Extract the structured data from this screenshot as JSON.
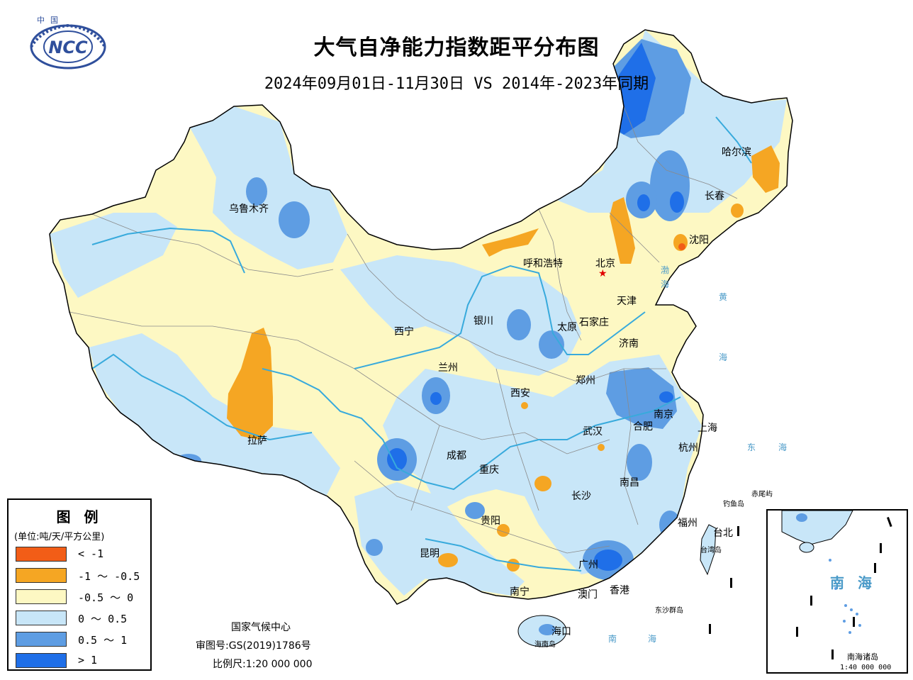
{
  "title": "大气自净能力指数距平分布图",
  "subtitle": "2024年09月01日-11月30日 VS 2014年-2023年同期",
  "logo": {
    "top_text": "中国",
    "text": "NCC"
  },
  "colors": {
    "lt_neg1": "#f25d17",
    "neg1_neg05": "#f5a623",
    "neg05_0": "#fdf8c3",
    "0_05": "#c8e6f8",
    "05_1": "#5e9de3",
    "gt_1": "#1f6fe8",
    "river": "#38aadc",
    "border": "#8a8a8a",
    "outline": "#000000"
  },
  "legend": {
    "title": "图 例",
    "unit": "(单位:吨/天/平方公里)",
    "items": [
      {
        "label": "< -1",
        "color": "#f25d17"
      },
      {
        "label": "-1 ～ -0.5",
        "color": "#f5a623"
      },
      {
        "label": "-0.5 ～ 0",
        "color": "#fdf8c3"
      },
      {
        "label": "0 ～ 0.5",
        "color": "#c8e6f8"
      },
      {
        "label": "0.5 ～ 1",
        "color": "#5e9de3"
      },
      {
        "label": "> 1",
        "color": "#1f6fe8"
      }
    ]
  },
  "cities": {
    "urumqi": "乌鲁木齐",
    "harbin": "哈尔滨",
    "changchun": "长春",
    "shenyang": "沈阳",
    "hohhot": "呼和浩特",
    "beijing": "北京",
    "tianjin": "天津",
    "yinchuan": "银川",
    "taiyuan": "太原",
    "shijiazhuang": "石家庄",
    "xining": "西宁",
    "jinan": "济南",
    "lanzhou": "兰州",
    "zhengzhou": "郑州",
    "xian": "西安",
    "nanjing": "南京",
    "hefei": "合肥",
    "shanghai": "上海",
    "lhasa": "拉萨",
    "wuhan": "武汉",
    "hangzhou": "杭州",
    "chengdu": "成都",
    "chongqing": "重庆",
    "nanchang": "南昌",
    "changsha": "长沙",
    "guiyang": "贵阳",
    "fuzhou": "福州",
    "taipei": "台北",
    "kunming": "昆明",
    "guangzhou": "广州",
    "nanning": "南宁",
    "macau": "澳门",
    "hongkong": "香港",
    "haikou": "海口"
  },
  "seas": {
    "bohai": "渤",
    "bohai2": "海",
    "huanghai": "黄",
    "huanghai2": "海",
    "donghai": "东",
    "donghai2": "海",
    "nanhai": "南",
    "nanhai2": "海"
  },
  "islands": {
    "diaoyu": "钓鱼岛",
    "chiwei": "赤尾屿",
    "taiwan": "台湾岛",
    "dongsha": "东沙群岛",
    "hainan": "海南岛"
  },
  "footer": {
    "agency": "国家气候中心",
    "map_number": "审图号:GS(2019)1786号",
    "scale": "比例尺:1:20 000 000"
  },
  "inset": {
    "sea": "南 海",
    "islands": "南海诸岛",
    "scale": "1:40 000 000"
  }
}
